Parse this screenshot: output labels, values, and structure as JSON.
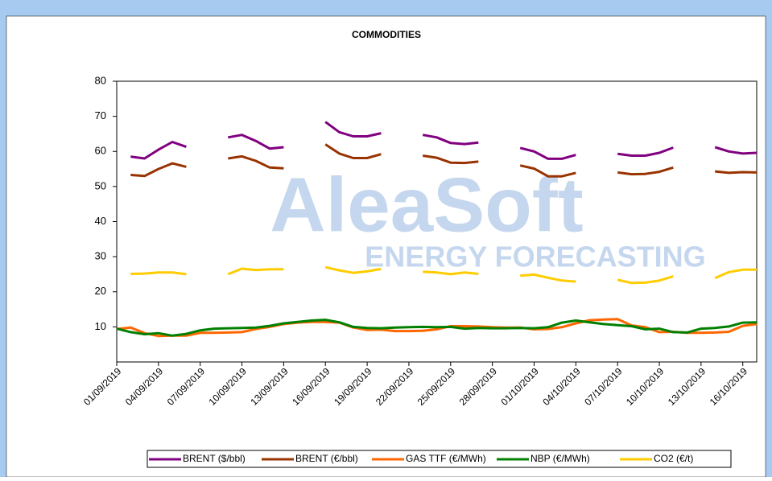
{
  "chart_data": {
    "type": "line",
    "title": "COMMODITIES",
    "watermark": "AleaSoft",
    "watermark_subtitle": "ENERGY FORECASTING",
    "categories": [
      "01/09/2019",
      null,
      null,
      "04/09/2019",
      null,
      null,
      "07/09/2019",
      null,
      null,
      "10/09/2019",
      null,
      null,
      "13/09/2019",
      null,
      null,
      "16/09/2019",
      null,
      null,
      "19/09/2019",
      null,
      null,
      "22/09/2019",
      null,
      null,
      "25/09/2019",
      null,
      null,
      "28/09/2019",
      null,
      null,
      "01/10/2019",
      null,
      null,
      "04/10/2019",
      null,
      null,
      "07/10/2019",
      null,
      null,
      "10/10/2019",
      null,
      null,
      "13/10/2019",
      null,
      null,
      "16/10/2019",
      null
    ],
    "ylim": [
      0,
      80
    ],
    "yticks": [
      10,
      20,
      30,
      40,
      50,
      60,
      70,
      80
    ],
    "grid": false,
    "legend": "bottom",
    "series": [
      {
        "name": "BRENT ($/bbl)",
        "color": "#800080",
        "values": [
          null,
          58.5,
          58,
          60.5,
          62.7,
          61.3,
          null,
          null,
          64,
          64.7,
          63,
          60.8,
          61.2,
          null,
          null,
          68.4,
          65.5,
          64.3,
          64.3,
          65.2,
          null,
          null,
          64.7,
          64,
          62.4,
          62.1,
          62.5,
          null,
          null,
          61,
          60,
          57.9,
          57.9,
          59,
          null,
          null,
          59.3,
          58.8,
          58.8,
          59.6,
          61.1,
          null,
          null,
          61.2,
          60,
          59.4,
          59.6
        ]
      },
      {
        "name": "BRENT (€/bbl)",
        "color": "#993300",
        "values": [
          null,
          53.3,
          53,
          55,
          56.6,
          55.6,
          null,
          null,
          58,
          58.6,
          57.3,
          55.4,
          55.2,
          null,
          null,
          62,
          59.4,
          58.1,
          58.1,
          59.2,
          null,
          null,
          58.8,
          58.2,
          56.8,
          56.7,
          57.1,
          null,
          null,
          56,
          55.1,
          52.9,
          52.9,
          53.9,
          null,
          null,
          54,
          53.5,
          53.6,
          54.2,
          55.4,
          null,
          null,
          54.3,
          53.9,
          54.1,
          54
        ]
      },
      {
        "name": "GAS TTF (€/MWh)",
        "color": "#ff6600",
        "values": [
          9.4,
          9.8,
          8.2,
          7.4,
          7.5,
          7.5,
          8.3,
          8.3,
          8.4,
          8.5,
          9.4,
          10,
          10.8,
          11.2,
          11.4,
          11.4,
          11.2,
          9.8,
          9.1,
          9.2,
          8.8,
          8.8,
          8.9,
          9.3,
          10.2,
          10.2,
          10.1,
          9.9,
          9.8,
          9.8,
          9.3,
          9.4,
          9.9,
          11,
          11.9,
          12.1,
          12.2,
          10.4,
          9.9,
          8.5,
          8.6,
          8.3,
          8.3,
          8.4,
          8.6,
          10.3,
          10.8
        ]
      },
      {
        "name": "NBP (€/MWh)",
        "color": "#008000",
        "values": [
          9.5,
          8.5,
          7.9,
          8.2,
          7.5,
          8,
          9,
          9.5,
          9.6,
          9.7,
          9.8,
          10.3,
          11,
          11.4,
          11.8,
          12,
          11.3,
          10,
          9.7,
          9.6,
          9.8,
          9.9,
          10,
          9.9,
          10,
          9.5,
          9.7,
          9.6,
          9.6,
          9.7,
          9.6,
          9.9,
          11.2,
          11.8,
          11.3,
          10.8,
          10.5,
          10.2,
          9.3,
          9.5,
          8.5,
          8.4,
          9.5,
          9.7,
          10.1,
          11.2,
          11.3
        ]
      },
      {
        "name": "CO2 (€/t)",
        "color": "#ffcc00",
        "values": [
          null,
          25.1,
          25.2,
          25.5,
          25.5,
          25,
          null,
          null,
          25,
          26.6,
          26.2,
          26.4,
          26.4,
          null,
          null,
          27,
          26.1,
          25.4,
          25.8,
          26.5,
          null,
          null,
          25.7,
          25.5,
          25,
          25.5,
          25.1,
          null,
          null,
          24.6,
          24.9,
          24,
          23.2,
          22.9,
          null,
          null,
          23.4,
          22.5,
          22.6,
          23.2,
          24.4,
          null,
          null,
          23.9,
          25.6,
          26.3,
          26.3
        ]
      }
    ]
  }
}
